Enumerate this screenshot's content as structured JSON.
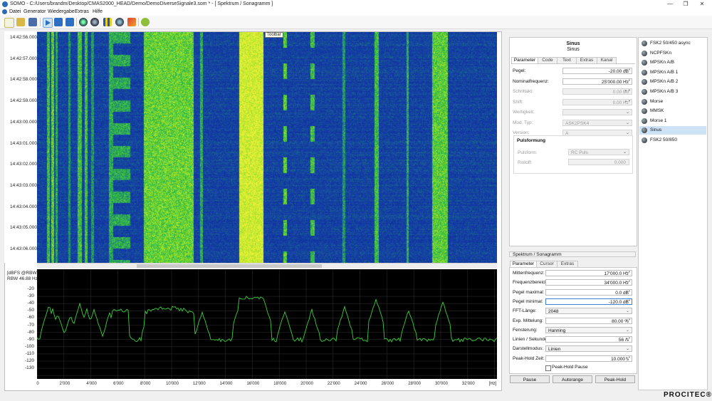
{
  "window": {
    "title": "SOMO - C:/Users/brandm/Desktop/CMAS2000_HEAD/Demo/DemoDiverseSignale3.som * - [ Spektrum / Sonagramm ]",
    "minimize": "—",
    "maximize": "❐",
    "close": "✕"
  },
  "menu": [
    "Datei",
    "Generator",
    "Wiedergabe",
    "Extras",
    "Hilfe"
  ],
  "toolbar_tooltip": "Toolbar",
  "waterfall": {
    "times": [
      "14:42:56.000",
      "14:42:57.000",
      "14:42:58.000",
      "14:42:59.000",
      "14:43:00.000",
      "14:43:01.000",
      "14:43:02.000",
      "14:43:03.000",
      "14:43:04.000",
      "14:43:05.000",
      "14:43:06.000"
    ]
  },
  "spectrum": {
    "unit_label": "[dBFS @RBW]",
    "rbw_label": "RBW 46.88 Hz",
    "y_ticks": [
      "-20",
      "-30",
      "-40",
      "-50",
      "-60",
      "-70",
      "-80",
      "-90",
      "-100",
      "-110",
      "-120",
      "-130"
    ],
    "x_ticks": [
      "0",
      "2'000",
      "4'000",
      "6'000",
      "8'000",
      "10'000",
      "12'000",
      "14'000",
      "16'000",
      "18'000",
      "20'000",
      "22'000",
      "24'000",
      "26'000",
      "28'000",
      "30'000",
      "32'000",
      "[Hz]"
    ],
    "line_color": "#39d13a"
  },
  "sinus_panel": {
    "title": "Sinus",
    "subtitle": "Sinus",
    "tabs": [
      "Parameter",
      "Code",
      "Text",
      "Extras",
      "Kanal"
    ],
    "fields": [
      {
        "label": "Pegel:",
        "value": "-20.00 dB",
        "kind": "spin",
        "enabled": true
      },
      {
        "label": "Nominalfrequenz:",
        "value": "25'000.00 Hz",
        "kind": "spin",
        "enabled": true
      },
      {
        "label": "Schrittakt:",
        "value": "0.00 Bd",
        "kind": "spin",
        "enabled": false
      },
      {
        "label": "Shift:",
        "value": "0.00 Hz",
        "kind": "spin",
        "enabled": false
      },
      {
        "label": "Wertigkeit:",
        "value": "",
        "kind": "combo",
        "enabled": false
      },
      {
        "label": "Mod. Typ:",
        "value": "ASK2PSK4",
        "kind": "combo",
        "enabled": false
      },
      {
        "label": "Version:",
        "value": "A",
        "kind": "combo",
        "enabled": false
      }
    ],
    "pulse_section": "Pulsformung",
    "pulse_fields": [
      {
        "label": "Pulsform:",
        "value": "RC Puls",
        "kind": "combo"
      },
      {
        "label": "Rolloff:",
        "value": "0.000",
        "kind": "spin"
      }
    ]
  },
  "spec_settings": {
    "section_title": "Spektrum / Sonagramm",
    "tabs": [
      "Parameter",
      "Cursor",
      "Extras"
    ],
    "fields": [
      {
        "label": "Mittenfrequenz:",
        "value": "17'000.0 Hz",
        "kind": "spin"
      },
      {
        "label": "Frequenzbereich:",
        "value": "34'000.0 Hz",
        "kind": "spin"
      },
      {
        "label": "Pegel maximal:",
        "value": "0.0 dB",
        "kind": "spin"
      },
      {
        "label": "Pegel minimal:",
        "value": "-120.0 dB",
        "kind": "spin"
      },
      {
        "label": "FFT-Länge:",
        "value": "2048",
        "kind": "combo"
      },
      {
        "label": "Exp. Mittelung:",
        "value": "80.00 %",
        "kind": "spin"
      },
      {
        "label": "Fensterung:",
        "value": "Hanning",
        "kind": "combo"
      },
      {
        "label": "Linien / Sekunde:",
        "value": "56 /s",
        "kind": "spin"
      },
      {
        "label": "Darstellmodus:",
        "value": "Linien",
        "kind": "combo"
      },
      {
        "label": "Peak-Hold Zeit:",
        "value": "10.000 s",
        "kind": "spin"
      }
    ],
    "peak_hold_pause_label": "Peak-Hold Pause",
    "buttons": [
      "Pause",
      "Autorange",
      "Peak-Hold"
    ]
  },
  "modulations": [
    "FSK2 50/450 async",
    "NCPFSKn",
    "MPSKn A/B",
    "MPSKn A/B 1",
    "MPSKn A/B 2",
    "MPSKn A/B 3",
    "Morse",
    "MMSK",
    "Morse 1",
    "Sinus",
    "FSK2 50/850"
  ],
  "selected_modulation": "Sinus",
  "brand": "PROCITEC®"
}
